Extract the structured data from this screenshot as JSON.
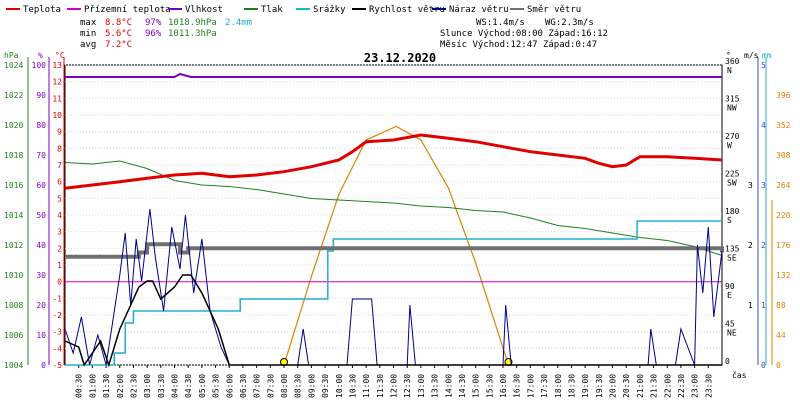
{
  "chart_data": {
    "type": "line",
    "title": "23.12.2020",
    "legend": [
      {
        "name": "Teplota",
        "color": "#e00000"
      },
      {
        "name": "Přízemní teplota",
        "color": "#d000d0"
      },
      {
        "name": "Vlhkost",
        "color": "#8000c0"
      },
      {
        "name": "Tlak",
        "color": "#208020"
      },
      {
        "name": "Srážky",
        "color": "#20b0d0"
      },
      {
        "name": "Rychlost větru",
        "color": "#000000"
      },
      {
        "name": "Náraz větru",
        "color": "#00008b"
      },
      {
        "name": "Směr větru",
        "color": "#707070"
      }
    ],
    "summary": {
      "max_label": "max",
      "max_temp": "8.8°C",
      "max_hum": "97%",
      "max_press": "1018.9hPa",
      "max_rain": "2.4mm",
      "min_label": "min",
      "min_temp": "5.6°C",
      "min_hum": "96%",
      "min_press": "1011.3hPa",
      "avg_label": "avg",
      "avg_temp": "7.2°C"
    },
    "info": {
      "ws": "WS:1.4m/s",
      "wg": "WG:2.3m/s",
      "sun": "Slunce Východ:08:00  Západ:16:12",
      "moon": "Měsíc  Východ:12:47  Západ:0:47"
    },
    "axis_heads": {
      "hpa": "hPa",
      "pct": "%",
      "degc": "°C",
      "deg": "°",
      "ms": "m/s",
      "mm": "mm",
      "cas": "čas"
    },
    "hpa_ticks": [
      "1024",
      "1022",
      "1020",
      "1018",
      "1016",
      "1014",
      "1012",
      "1010",
      "1008",
      "1006",
      "1004"
    ],
    "pct_ticks": [
      "100",
      "90",
      "80",
      "70",
      "60",
      "50",
      "40",
      "30",
      "20",
      "10",
      "0"
    ],
    "temp_ticks": [
      "13",
      "12",
      "11",
      "10",
      "9",
      "8",
      "7",
      "6",
      "5",
      "4",
      "3",
      "2",
      "1",
      "0",
      "-1",
      "-2",
      "-3",
      "-4",
      "-5"
    ],
    "dir_ticks": [
      {
        "val": "360",
        "lab": "N"
      },
      {
        "val": "315",
        "lab": "NW"
      },
      {
        "val": "270",
        "lab": "W"
      },
      {
        "val": "225",
        "lab": "SW"
      },
      {
        "val": "180",
        "lab": "S"
      },
      {
        "val": "135",
        "lab": "SE"
      },
      {
        "val": "90",
        "lab": "E"
      },
      {
        "val": "45",
        "lab": "NE"
      },
      {
        "val": "0",
        "lab": ""
      }
    ],
    "ms_ticks": [
      "5",
      "4",
      "3",
      "2",
      "1",
      "0"
    ],
    "mm_ticks": [
      "3",
      "2",
      "1"
    ],
    "sun_ticks": [
      "396",
      "352",
      "308",
      "264",
      "220",
      "176",
      "132",
      "88",
      "44",
      "0"
    ],
    "x_labels": [
      "00:30",
      "01:00",
      "01:30",
      "02:00",
      "02:30",
      "03:00",
      "03:30",
      "04:00",
      "04:30",
      "05:00",
      "05:30",
      "06:00",
      "06:30",
      "07:00",
      "07:30",
      "08:00",
      "08:30",
      "09:00",
      "09:30",
      "10:00",
      "10:30",
      "11:00",
      "11:30",
      "12:00",
      "12:30",
      "13:00",
      "13:30",
      "14:00",
      "14:30",
      "15:00",
      "15:30",
      "16:00",
      "16:30",
      "17:00",
      "17:30",
      "18:00",
      "18:30",
      "19:00",
      "19:30",
      "20:00",
      "20:30",
      "21:00",
      "21:30",
      "22:00",
      "22:30",
      "23:00",
      "23:30"
    ],
    "temperature_c": [
      [
        0,
        5.6
      ],
      [
        1,
        5.8
      ],
      [
        2,
        6.0
      ],
      [
        3,
        6.2
      ],
      [
        4,
        6.4
      ],
      [
        5,
        6.5
      ],
      [
        6,
        6.3
      ],
      [
        7,
        6.4
      ],
      [
        8,
        6.6
      ],
      [
        9,
        6.9
      ],
      [
        10,
        7.3
      ],
      [
        10.5,
        7.8
      ],
      [
        11,
        8.4
      ],
      [
        12,
        8.5
      ],
      [
        13,
        8.8
      ],
      [
        14,
        8.6
      ],
      [
        15,
        8.4
      ],
      [
        16,
        8.1
      ],
      [
        17,
        7.8
      ],
      [
        18,
        7.6
      ],
      [
        19,
        7.4
      ],
      [
        19.5,
        7.1
      ],
      [
        20,
        6.9
      ],
      [
        20.5,
        7.0
      ],
      [
        21,
        7.5
      ],
      [
        22,
        7.5
      ],
      [
        23,
        7.4
      ],
      [
        24,
        7.3
      ]
    ],
    "humidity_pct": [
      [
        0,
        96
      ],
      [
        4,
        96
      ],
      [
        4.2,
        97
      ],
      [
        4.6,
        96
      ],
      [
        24,
        96
      ]
    ],
    "ground_temp_c": [
      [
        0,
        0
      ],
      [
        24,
        0
      ]
    ],
    "pressure_hpa": [
      [
        0,
        1017.5
      ],
      [
        1,
        1017.4
      ],
      [
        2,
        1017.6
      ],
      [
        3,
        1017.1
      ],
      [
        4,
        1016.3
      ],
      [
        5,
        1016.0
      ],
      [
        6,
        1015.9
      ],
      [
        7,
        1015.7
      ],
      [
        8,
        1015.4
      ],
      [
        9,
        1015.1
      ],
      [
        10,
        1015.0
      ],
      [
        11,
        1014.9
      ],
      [
        12,
        1014.8
      ],
      [
        13,
        1014.6
      ],
      [
        14,
        1014.5
      ],
      [
        15,
        1014.3
      ],
      [
        16,
        1014.2
      ],
      [
        17,
        1013.8
      ],
      [
        18,
        1013.3
      ],
      [
        19,
        1013.1
      ],
      [
        20,
        1012.8
      ],
      [
        21,
        1012.5
      ],
      [
        22,
        1012.3
      ],
      [
        23,
        1011.9
      ],
      [
        24,
        1011.3
      ]
    ],
    "rain_mm": [
      [
        0,
        0
      ],
      [
        1.5,
        0
      ],
      [
        1.8,
        0.2
      ],
      [
        2.2,
        0.7
      ],
      [
        2.5,
        0.9
      ],
      [
        6.3,
        0.9
      ],
      [
        6.4,
        1.1
      ],
      [
        9.2,
        1.1
      ],
      [
        9.6,
        1.9
      ],
      [
        9.8,
        2.1
      ],
      [
        20.8,
        2.1
      ],
      [
        20.9,
        2.4
      ],
      [
        24,
        2.4
      ]
    ],
    "wind_speed_ms": [
      [
        0,
        0.4
      ],
      [
        0.5,
        0.3
      ],
      [
        0.7,
        0
      ],
      [
        1.0,
        0.2
      ],
      [
        1.3,
        0.4
      ],
      [
        1.6,
        0
      ],
      [
        2.0,
        0.6
      ],
      [
        2.3,
        0.9
      ],
      [
        2.7,
        1.3
      ],
      [
        3.0,
        1.4
      ],
      [
        3.2,
        1.4
      ],
      [
        3.5,
        1.1
      ],
      [
        4.0,
        1.3
      ],
      [
        4.3,
        1.5
      ],
      [
        4.6,
        1.5
      ],
      [
        5.0,
        1.2
      ],
      [
        5.3,
        0.9
      ],
      [
        5.6,
        0.6
      ],
      [
        6.0,
        0
      ],
      [
        24,
        0
      ]
    ],
    "wind_gust_ms": [
      [
        0,
        0.6
      ],
      [
        0.3,
        0.2
      ],
      [
        0.6,
        0.8
      ],
      [
        0.9,
        0
      ],
      [
        1.2,
        0.5
      ],
      [
        1.5,
        0
      ],
      [
        2.0,
        1.5
      ],
      [
        2.2,
        2.2
      ],
      [
        2.4,
        1.0
      ],
      [
        2.6,
        2.1
      ],
      [
        2.8,
        1.4
      ],
      [
        3.1,
        2.6
      ],
      [
        3.3,
        1.8
      ],
      [
        3.6,
        0.9
      ],
      [
        3.9,
        2.3
      ],
      [
        4.2,
        1.6
      ],
      [
        4.4,
        2.5
      ],
      [
        4.7,
        1.2
      ],
      [
        5.0,
        2.1
      ],
      [
        5.3,
        0.9
      ],
      [
        5.7,
        0.3
      ],
      [
        6.0,
        0
      ],
      [
        8.5,
        0
      ],
      [
        8.7,
        0.6
      ],
      [
        8.9,
        0
      ],
      [
        10.3,
        0
      ],
      [
        10.5,
        1.1
      ],
      [
        11.2,
        1.1
      ],
      [
        11.4,
        0
      ],
      [
        12.5,
        0
      ],
      [
        12.6,
        1.0
      ],
      [
        12.8,
        0
      ],
      [
        16.0,
        0
      ],
      [
        16.1,
        1.0
      ],
      [
        16.3,
        0
      ],
      [
        21.3,
        0
      ],
      [
        21.4,
        0.6
      ],
      [
        21.6,
        0
      ],
      [
        22.3,
        0
      ],
      [
        22.5,
        0.6
      ],
      [
        23.0,
        0
      ],
      [
        23.1,
        2.0
      ],
      [
        23.3,
        1.2
      ],
      [
        23.5,
        2.3
      ],
      [
        23.7,
        0.8
      ],
      [
        24,
        1.9
      ]
    ],
    "wind_dir_deg": [
      [
        0,
        130
      ],
      [
        2.5,
        130
      ],
      [
        2.7,
        135
      ],
      [
        3.0,
        145
      ],
      [
        4.0,
        145
      ],
      [
        4.2,
        135
      ],
      [
        4.5,
        140
      ],
      [
        24,
        135
      ]
    ],
    "sun_elevation_curve": [
      [
        8.0,
        0
      ],
      [
        9.0,
        130
      ],
      [
        10.0,
        250
      ],
      [
        11.0,
        330
      ],
      [
        12.1,
        350
      ],
      [
        13.0,
        330
      ],
      [
        14.0,
        260
      ],
      [
        15.0,
        150
      ],
      [
        16.2,
        0
      ]
    ]
  }
}
